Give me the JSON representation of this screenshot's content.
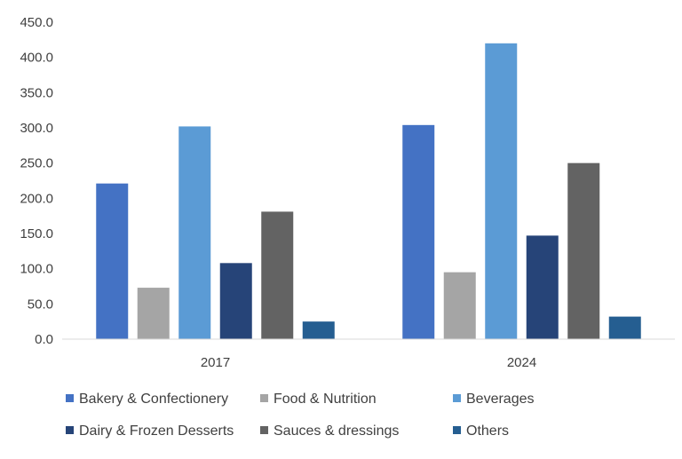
{
  "chart_data": {
    "type": "bar",
    "title": "",
    "xlabel": "",
    "ylabel": "",
    "categories": [
      "2017",
      "2024"
    ],
    "ylim": [
      0,
      450
    ],
    "yticks": [
      "0.0",
      "50.0",
      "100.0",
      "150.0",
      "200.0",
      "250.0",
      "300.0",
      "350.0",
      "400.0",
      "450.0"
    ],
    "grid": false,
    "legend_position": "bottom",
    "series": [
      {
        "name": "Bakery & Confectionery",
        "color": "#4472C4",
        "values": [
          221,
          304
        ]
      },
      {
        "name": "Food & Nutrition",
        "color": "#A5A5A5",
        "values": [
          73,
          95
        ]
      },
      {
        "name": "Beverages",
        "color": "#5B9BD5",
        "values": [
          302,
          420
        ]
      },
      {
        "name": "Dairy & Frozen Desserts",
        "color": "#264478",
        "values": [
          108,
          147
        ]
      },
      {
        "name": "Sauces & dressings",
        "color": "#636363",
        "values": [
          181,
          250
        ]
      },
      {
        "name": "Others",
        "color": "#255E91",
        "values": [
          25,
          32
        ]
      }
    ]
  }
}
